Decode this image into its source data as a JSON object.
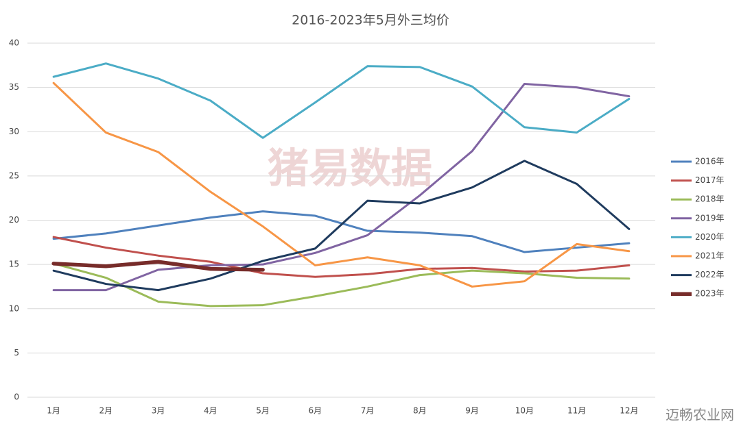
{
  "chart_data": {
    "type": "line",
    "title": "2016-2023年5月外三均价",
    "categories": [
      "1月",
      "2月",
      "3月",
      "4月",
      "5月",
      "6月",
      "7月",
      "8月",
      "9月",
      "10月",
      "11月",
      "12月"
    ],
    "series": [
      {
        "name": "2016年",
        "color": "#4f81bd",
        "line_width": 3,
        "values": [
          17.9,
          18.5,
          19.4,
          20.3,
          21.0,
          20.5,
          18.8,
          18.6,
          18.2,
          16.4,
          16.9,
          17.4
        ]
      },
      {
        "name": "2017年",
        "color": "#c0504d",
        "line_width": 3,
        "values": [
          18.1,
          16.9,
          16.0,
          15.3,
          14.0,
          13.6,
          13.9,
          14.5,
          14.6,
          14.2,
          14.3,
          14.9
        ]
      },
      {
        "name": "2018年",
        "color": "#9bbb59",
        "line_width": 3,
        "values": [
          15.1,
          13.5,
          10.8,
          10.3,
          10.4,
          11.4,
          12.5,
          13.8,
          14.3,
          14.0,
          13.5,
          13.4
        ]
      },
      {
        "name": "2019年",
        "color": "#8064a2",
        "line_width": 3,
        "values": [
          12.1,
          12.1,
          14.4,
          14.9,
          15.0,
          16.3,
          18.3,
          22.8,
          27.8,
          35.4,
          35.0,
          34.0
        ]
      },
      {
        "name": "2020年",
        "color": "#4bacc6",
        "line_width": 3,
        "values": [
          36.2,
          37.7,
          36.0,
          33.5,
          29.3,
          33.3,
          37.4,
          37.3,
          35.1,
          30.5,
          29.9,
          33.7
        ]
      },
      {
        "name": "2021年",
        "color": "#f79646",
        "line_width": 3,
        "values": [
          35.5,
          29.9,
          27.7,
          23.2,
          19.3,
          14.9,
          15.8,
          14.9,
          12.5,
          13.1,
          17.3,
          16.5
        ]
      },
      {
        "name": "2022年",
        "color": "#1f3b5e",
        "line_width": 3,
        "values": [
          14.3,
          12.8,
          12.1,
          13.4,
          15.4,
          16.8,
          22.2,
          21.9,
          23.7,
          26.7,
          24.1,
          19.0
        ]
      },
      {
        "name": "2023年",
        "color": "#772c2a",
        "line_width": 5.5,
        "values": [
          15.1,
          14.8,
          15.3,
          14.5,
          14.4,
          null,
          null,
          null,
          null,
          null,
          null,
          null
        ]
      }
    ],
    "ylim": [
      0,
      40
    ],
    "yticks": [
      0,
      5,
      10,
      15,
      20,
      25,
      30,
      35,
      40
    ],
    "grid": true,
    "legend": "right",
    "watermark": "猪易数据",
    "source": "迈畅农业网"
  }
}
